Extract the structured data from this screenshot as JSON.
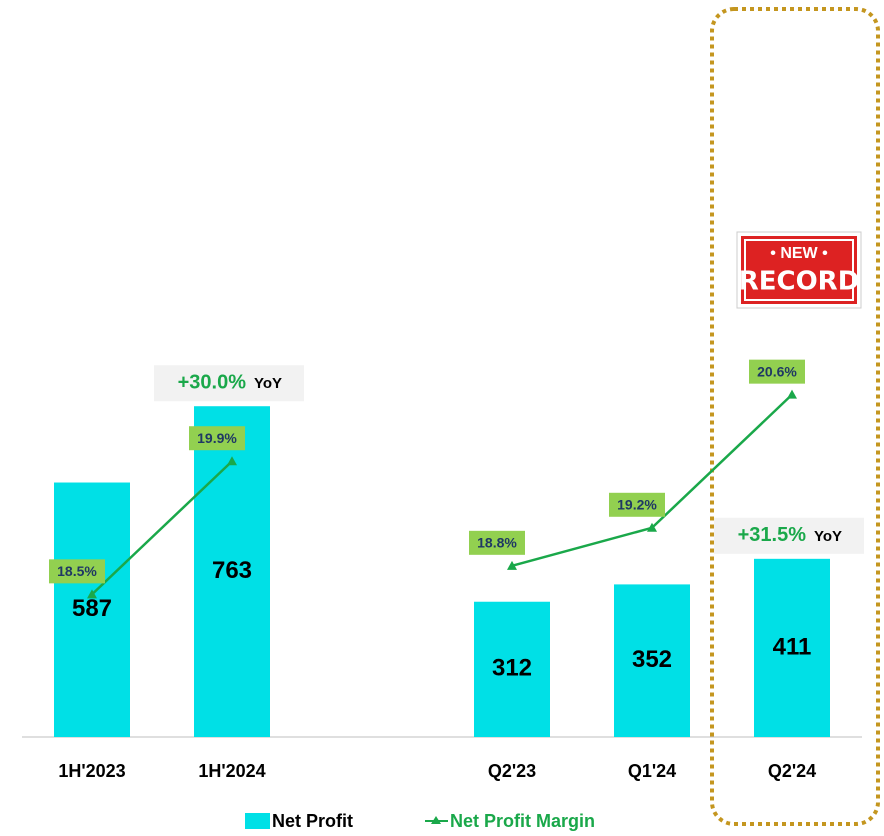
{
  "chart_data": {
    "type": "bar",
    "categories": [
      "1H'2023",
      "1H'2024",
      null,
      "Q2'23",
      "Q1'24",
      "Q2'24"
    ],
    "series": [
      {
        "name": "Net Profit",
        "type": "bar",
        "color": "#00e0e6",
        "values": [
          587,
          763,
          null,
          312,
          352,
          411
        ]
      },
      {
        "name": "Net Profit Margin",
        "type": "line",
        "axis": "y2",
        "color": "#1aa84a",
        "values": [
          18.5,
          19.9,
          null,
          18.8,
          19.2,
          20.6
        ],
        "value_labels": [
          "18.5%",
          "19.9%",
          null,
          "18.8%",
          "19.2%",
          "20.6%"
        ]
      }
    ],
    "ylim": [
      0,
      1700
    ],
    "y2lim": [
      17,
      24.75
    ],
    "annotations": [
      {
        "change": "+30.0%",
        "suffix": "YoY"
      },
      {
        "change": "+31.5%",
        "suffix": "YoY"
      }
    ],
    "stamp": {
      "top": "• NEW •",
      "bottom": "RECORD"
    }
  }
}
